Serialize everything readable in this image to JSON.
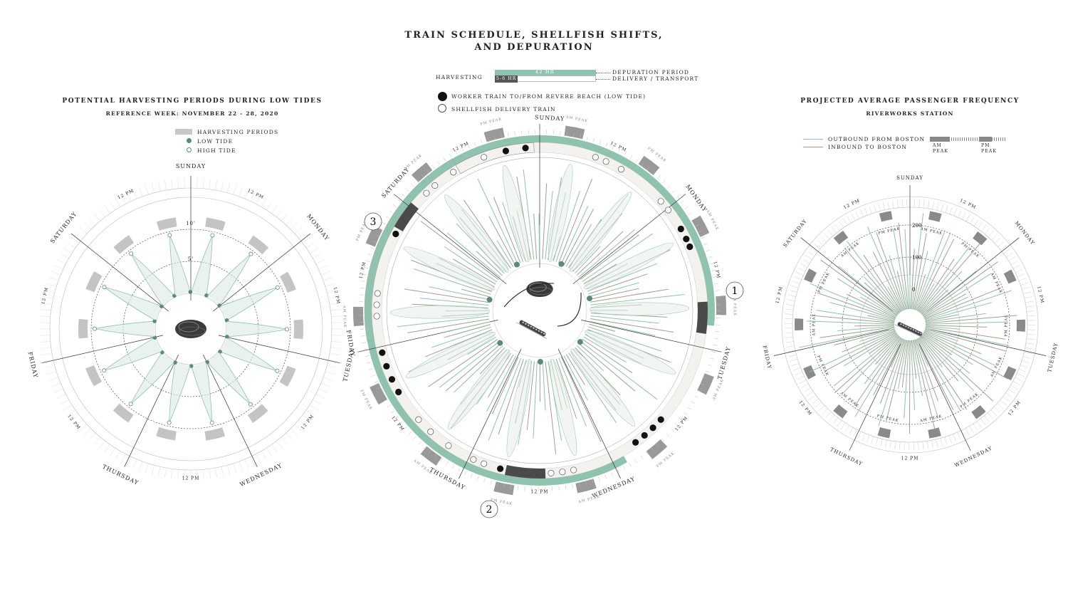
{
  "title": {
    "line1": "TRAIN SCHEDULE, SHELLFISH SHIFTS,",
    "line2": "AND DEPURATION"
  },
  "process_legend": {
    "harvesting": "HARVESTING",
    "harvest_duration": "5-6 HR",
    "depuration_duration": "42 HR",
    "depuration": "DEPURATION PERIOD",
    "delivery": "DELIVERY / TRANSPORT"
  },
  "train_legend": {
    "worker": "WORKER TRAIN TO/FROM REVERE BEACH (LOW TIDE)",
    "delivery": "SHELLFISH DELIVERY TRAIN"
  },
  "left_panel": {
    "title": "POTENTIAL HARVESTING PERIODS DURING LOW TIDES",
    "subtitle": "REFERENCE WEEK: NOVEMBER 22 - 28, 2020",
    "legend": [
      "HARVESTING PERIODS",
      "LOW TIDE",
      "HIGH TIDE"
    ],
    "scale": [
      "10'",
      "5'"
    ],
    "noon": "12 PM"
  },
  "right_panel": {
    "title": "PROJECTED AVERAGE PASSENGER FREQUENCY",
    "subtitle": "RIVERWORKS STATION",
    "legend": [
      "OUTBOUND FROM BOSTON",
      "INBOUND TO BOSTON"
    ],
    "peak_am": "AM PEAK",
    "peak_pm": "PM PEAK",
    "scale": [
      "200",
      "100",
      "0"
    ],
    "noon": "12 PM"
  },
  "center_panel": {
    "callouts": [
      "1",
      "2",
      "3"
    ],
    "am_peak": "AM PEAK",
    "pm_peak": "PM PEAK",
    "noon": "12 PM"
  },
  "days": [
    "SUNDAY",
    "MONDAY",
    "TUESDAY",
    "WEDNESDAY",
    "THURSDAY",
    "FRIDAY",
    "SATURDAY"
  ],
  "colors": {
    "green": "#8fc3ad",
    "green_dark": "#5c8a78",
    "tan": "#a59e8e",
    "black": "#111111",
    "grey": "#8a8a8a"
  }
}
